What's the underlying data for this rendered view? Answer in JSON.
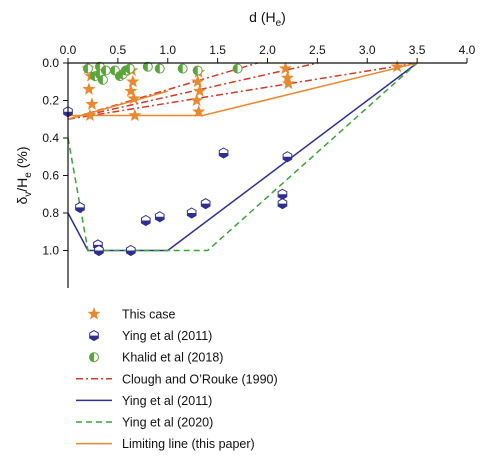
{
  "chart_data": {
    "type": "scatter",
    "x_axis": {
      "label": "d (H",
      "label_sub": "e",
      "label_end": ")",
      "range": [
        0.0,
        4.0
      ],
      "ticks": [
        "0.0",
        "0.5",
        "1.0",
        "1.5",
        "2.0",
        "2.5",
        "3.0",
        "3.5",
        "4.0"
      ],
      "tick_values": [
        0.0,
        0.5,
        1.0,
        1.5,
        2.0,
        2.5,
        3.0,
        3.5,
        4.0
      ],
      "position": "top"
    },
    "y_axis": {
      "label_parts": [
        "δ",
        "v",
        "/H",
        "e",
        " (%)"
      ],
      "range": [
        0.0,
        1.2
      ],
      "inverted": true,
      "ticks": [
        "0.0",
        "0.2",
        "0.4",
        "0.6",
        "0.8",
        "1.0"
      ],
      "tick_values": [
        0.0,
        0.2,
        0.4,
        0.6,
        0.8,
        1.0
      ]
    },
    "grid": false,
    "legend_placement": "bottom-left",
    "series": [
      {
        "name": "This case",
        "kind": "scatter",
        "marker": "star",
        "color": "#e8892f",
        "points": [
          [
            0.2,
            0.03
          ],
          [
            0.23,
            0.07
          ],
          [
            0.21,
            0.14
          ],
          [
            0.24,
            0.22
          ],
          [
            0.22,
            0.28
          ],
          [
            0.64,
            0.04
          ],
          [
            0.65,
            0.1
          ],
          [
            0.63,
            0.15
          ],
          [
            0.66,
            0.19
          ],
          [
            0.67,
            0.28
          ],
          [
            1.31,
            0.05
          ],
          [
            1.3,
            0.1
          ],
          [
            1.32,
            0.15
          ],
          [
            1.29,
            0.2
          ],
          [
            1.31,
            0.26
          ],
          [
            2.18,
            0.03
          ],
          [
            2.2,
            0.08
          ],
          [
            2.21,
            0.11
          ],
          [
            3.3,
            0.02
          ]
        ]
      },
      {
        "name": "Ying et al (2011)",
        "kind": "scatter",
        "marker": "hexagon-half",
        "color": "#2e2f8f",
        "points": [
          [
            0.0,
            0.26
          ],
          [
            0.12,
            0.77
          ],
          [
            0.3,
            0.97
          ],
          [
            0.31,
            1.0
          ],
          [
            0.63,
            1.0
          ],
          [
            0.78,
            0.84
          ],
          [
            0.92,
            0.82
          ],
          [
            1.24,
            0.8
          ],
          [
            1.38,
            0.75
          ],
          [
            1.56,
            0.48
          ],
          [
            2.15,
            0.7
          ],
          [
            2.15,
            0.75
          ],
          [
            2.2,
            0.5
          ]
        ]
      },
      {
        "name": "Khalid et al (2018)",
        "kind": "scatter",
        "marker": "circle-half",
        "color": "#5aa53a",
        "points": [
          [
            0.2,
            0.03
          ],
          [
            0.27,
            0.07
          ],
          [
            0.32,
            0.02
          ],
          [
            0.32,
            0.06
          ],
          [
            0.35,
            0.09
          ],
          [
            0.38,
            0.04
          ],
          [
            0.47,
            0.04
          ],
          [
            0.52,
            0.07
          ],
          [
            0.55,
            0.06
          ],
          [
            0.58,
            0.04
          ],
          [
            0.62,
            0.03
          ],
          [
            0.8,
            0.02
          ],
          [
            0.92,
            0.03
          ],
          [
            1.15,
            0.03
          ],
          [
            1.3,
            0.04
          ],
          [
            1.7,
            0.03
          ]
        ]
      },
      {
        "name": "Clough and O'Rouke (1990)",
        "kind": "line",
        "style": "dashdot",
        "color": "#cc3b2b",
        "lines": [
          [
            [
              0.0,
              0.3
            ],
            [
              1.9,
              0.0
            ]
          ],
          [
            [
              0.0,
              0.3
            ],
            [
              3.5,
              0.0
            ]
          ],
          [
            [
              0.0,
              0.3
            ],
            [
              2.5,
              0.0
            ]
          ]
        ]
      },
      {
        "name": "Ying et al (2011)",
        "kind": "line",
        "style": "solid",
        "color": "#2e2f8f",
        "lines": [
          [
            [
              0.0,
              0.8
            ],
            [
              0.2,
              1.0
            ],
            [
              1.0,
              1.0
            ],
            [
              3.5,
              0.0
            ]
          ]
        ]
      },
      {
        "name": "Ying et al (2020)",
        "kind": "line",
        "style": "dashed",
        "color": "#3aa33a",
        "lines": [
          [
            [
              0.0,
              0.4
            ],
            [
              0.2,
              1.0
            ],
            [
              1.4,
              1.0
            ],
            [
              3.5,
              0.0
            ]
          ]
        ]
      },
      {
        "name": "Limiting line (this paper)",
        "kind": "line",
        "style": "solid",
        "color": "#e8892f",
        "lines": [
          [
            [
              0.0,
              0.28
            ],
            [
              1.35,
              0.28
            ],
            [
              3.5,
              0.0
            ]
          ],
          [
            [
              0.0,
              0.3
            ],
            [
              1.0,
              0.15
            ]
          ]
        ]
      }
    ],
    "legend": [
      {
        "label": "This case",
        "kind": "star",
        "color": "#e8892f"
      },
      {
        "label": "Ying et al (2011)",
        "kind": "hexagon-half",
        "color": "#2e2f8f"
      },
      {
        "label": "Khalid et al (2018)",
        "kind": "circle-half",
        "color": "#5aa53a"
      },
      {
        "label": "Clough and O’Rouke (1990)",
        "kind": "dashdot",
        "color": "#cc3b2b"
      },
      {
        "label": "Ying et al (2011)",
        "kind": "solid",
        "color": "#2e2f8f"
      },
      {
        "label": "Ying et al (2020)",
        "kind": "dashed",
        "color": "#3aa33a"
      },
      {
        "label": "Limiting line (this paper)",
        "kind": "solid",
        "color": "#e8892f"
      }
    ]
  }
}
